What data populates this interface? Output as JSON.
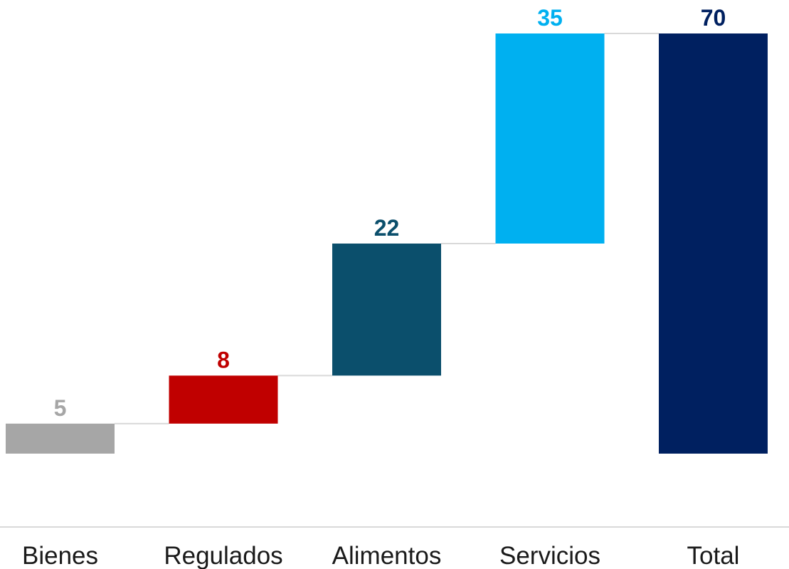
{
  "chart_data": {
    "type": "bar",
    "subtype": "waterfall",
    "title": "",
    "xlabel": "",
    "ylabel": "",
    "categories": [
      "Bienes",
      "Regulados",
      "Alimentos",
      "Servicios",
      "Total"
    ],
    "values": [
      5,
      8,
      22,
      35,
      70
    ],
    "is_total": [
      false,
      false,
      false,
      false,
      true
    ],
    "cumulative_end": [
      5,
      13,
      35,
      70,
      70
    ],
    "value_labels": [
      "5",
      "8",
      "22",
      "35",
      "70"
    ],
    "colors": [
      "#A6A6A6",
      "#C00000",
      "#0B4F6C",
      "#00B0F0",
      "#002060"
    ],
    "label_colors": [
      "#A6A6A6",
      "#C00000",
      "#0B4F6C",
      "#00B0F0",
      "#002060"
    ],
    "connector_color": "#D9D9D9",
    "axis_line_color": "#D9D9D9",
    "ylim": [
      0,
      70
    ],
    "grid": false,
    "legend": "none"
  }
}
